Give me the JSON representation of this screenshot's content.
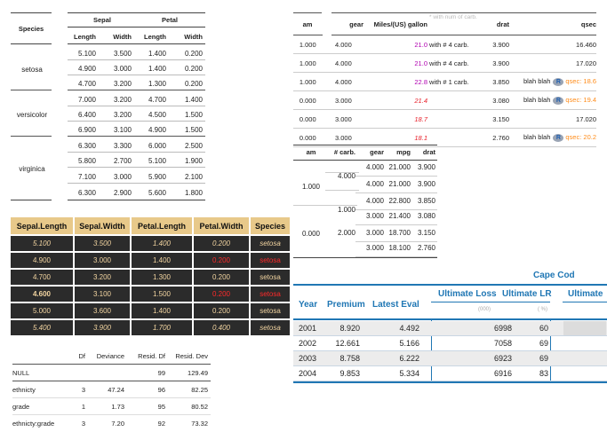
{
  "iris_grouped": {
    "species_header": "Species",
    "sepal_header": "Sepal",
    "petal_header": "Petal",
    "sub": [
      "Length",
      "Width",
      "Length",
      "Width"
    ],
    "groups": [
      {
        "name": "setosa",
        "rows": [
          [
            "5.100",
            "3.500",
            "1.400",
            "0.200"
          ],
          [
            "4.900",
            "3.000",
            "1.400",
            "0.200"
          ],
          [
            "4.700",
            "3.200",
            "1.300",
            "0.200"
          ]
        ]
      },
      {
        "name": "versicolor",
        "rows": [
          [
            "7.000",
            "3.200",
            "4.700",
            "1.400"
          ],
          [
            "6.400",
            "3.200",
            "4.500",
            "1.500"
          ],
          [
            "6.900",
            "3.100",
            "4.900",
            "1.500"
          ]
        ]
      },
      {
        "name": "virginica",
        "rows": [
          [
            "6.300",
            "3.300",
            "6.000",
            "2.500"
          ],
          [
            "5.800",
            "2.700",
            "5.100",
            "1.900"
          ],
          [
            "7.100",
            "3.000",
            "5.900",
            "2.100"
          ],
          [
            "6.300",
            "2.900",
            "5.600",
            "1.800"
          ]
        ]
      }
    ]
  },
  "iris_dark": {
    "headers": [
      "Sepal.Length",
      "Sepal.Width",
      "Petal.Length",
      "Petal.Width",
      "Species"
    ],
    "rows": [
      {
        "cells": [
          "5.100",
          "3.500",
          "1.400",
          "0.200",
          "setosa"
        ],
        "italic": true,
        "red": false,
        "bold": false
      },
      {
        "cells": [
          "4.900",
          "3.000",
          "1.400",
          "0.200",
          "setosa"
        ],
        "italic": false,
        "red": true,
        "bold": false
      },
      {
        "cells": [
          "4.700",
          "3.200",
          "1.300",
          "0.200",
          "setosa"
        ],
        "italic": false,
        "red": false,
        "bold": false
      },
      {
        "cells": [
          "4.600",
          "3.100",
          "1.500",
          "0.200",
          "setosa"
        ],
        "italic": false,
        "red": true,
        "bold": true
      },
      {
        "cells": [
          "5.000",
          "3.600",
          "1.400",
          "0.200",
          "setosa"
        ],
        "italic": false,
        "red": false,
        "bold": false
      },
      {
        "cells": [
          "5.400",
          "3.900",
          "1.700",
          "0.400",
          "setosa"
        ],
        "italic": true,
        "red": false,
        "bold": false
      }
    ]
  },
  "anova": {
    "headers": [
      "",
      "Df",
      "Deviance",
      "Resid. Df",
      "Resid. Dev"
    ],
    "rows": [
      [
        "NULL",
        "",
        "",
        "99",
        "129.49"
      ],
      [
        "ethnicty",
        "3",
        "47.24",
        "96",
        "82.25"
      ],
      [
        "grade",
        "1",
        "1.73",
        "95",
        "80.52"
      ],
      [
        "ethnicty:grade",
        "3",
        "7.20",
        "92",
        "73.32"
      ]
    ]
  },
  "mtcars_colored": {
    "headers": [
      "am",
      "gear",
      "Miles/(US) gallon",
      "drat",
      "qsec"
    ],
    "footnote": "* with num of carb.",
    "rows": [
      {
        "am": "1.000",
        "gear": "4.000",
        "mpg": "21.0",
        "mpg_note": "with # 4 carb.",
        "mpg_color": "#b000b0",
        "drat": "3.900",
        "qsec": "16.460",
        "blah": false,
        "qsec_color": "#222"
      },
      {
        "am": "1.000",
        "gear": "4.000",
        "mpg": "21.0",
        "mpg_note": "with # 4 carb.",
        "mpg_color": "#b000b0",
        "drat": "3.900",
        "qsec": "17.020",
        "blah": false,
        "qsec_color": "#222"
      },
      {
        "am": "1.000",
        "gear": "4.000",
        "mpg": "22.8",
        "mpg_note": "with # 1 carb.",
        "mpg_color": "#b000b0",
        "drat": "3.850",
        "qsec": "qsec: 18.6",
        "blah": true,
        "qsec_color": "#ff8c1a"
      },
      {
        "am": "0.000",
        "gear": "3.000",
        "mpg": "21.4",
        "mpg_note": "",
        "mpg_color": "#e8202a",
        "drat": "3.080",
        "qsec": "qsec: 19.4",
        "blah": true,
        "qsec_color": "#ff8c1a"
      },
      {
        "am": "0.000",
        "gear": "3.000",
        "mpg": "18.7",
        "mpg_note": "",
        "mpg_color": "#e8202a",
        "drat": "3.150",
        "qsec": "17.020",
        "blah": false,
        "qsec_color": "#222"
      },
      {
        "am": "0.000",
        "gear": "3.000",
        "mpg": "18.1",
        "mpg_note": "",
        "mpg_color": "#e8202a",
        "drat": "2.760",
        "qsec": "qsec: 20.2",
        "blah": true,
        "qsec_color": "#ff8c1a"
      }
    ],
    "blah_text": "blah blah",
    "r_logo": "R"
  },
  "mtcars_grouped": {
    "headers": [
      "am",
      "# carb.",
      "gear",
      "mpg",
      "drat"
    ],
    "rows": [
      [
        "",
        "",
        "4.000",
        "21.000",
        "3.900"
      ],
      [
        "",
        "",
        "4.000",
        "21.000",
        "3.900"
      ],
      [
        "",
        "",
        "4.000",
        "22.800",
        "3.850"
      ],
      [
        "",
        "",
        "3.000",
        "21.400",
        "3.080"
      ],
      [
        "",
        "2.000",
        "3.000",
        "18.700",
        "3.150"
      ],
      [
        "",
        "",
        "3.000",
        "18.100",
        "2.760"
      ]
    ],
    "am_labels": [
      "1.000",
      "0.000"
    ],
    "carb_labels": [
      "4.000",
      "1.000"
    ]
  },
  "capecod": {
    "title": "Cape Cod",
    "headers": [
      "Year",
      "Premium",
      "Latest Eval",
      "Ultimate Loss",
      "Ultimate LR",
      "Ultimate"
    ],
    "units": [
      "(000)",
      "( %)"
    ],
    "rows": [
      [
        "2001",
        "8.920",
        "4.492",
        "6998",
        "60"
      ],
      [
        "2002",
        "12.661",
        "5.166",
        "7058",
        "69"
      ],
      [
        "2003",
        "8.758",
        "6.222",
        "6923",
        "69"
      ],
      [
        "2004",
        "9.853",
        "5.334",
        "6916",
        "83"
      ]
    ],
    "accent": "#2077b4"
  }
}
